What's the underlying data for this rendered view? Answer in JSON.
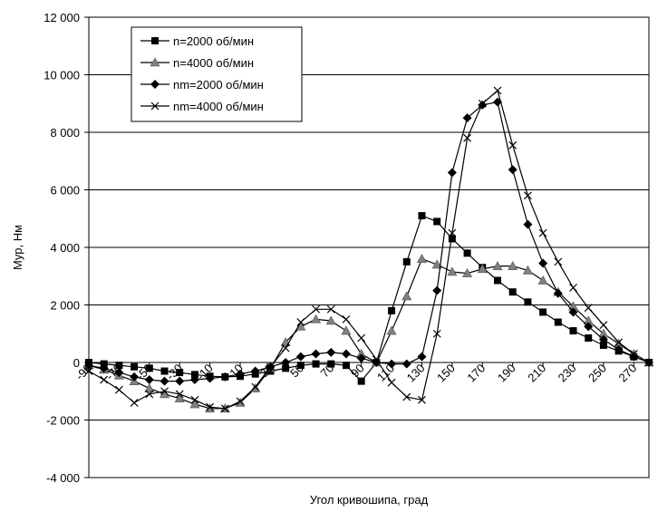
{
  "chart_data": {
    "type": "line",
    "title": "",
    "xlabel": "Угол кривошипа, град",
    "ylabel": "Мур, Нм",
    "xlim": [
      -90,
      280
    ],
    "ylim": [
      -4000,
      12000
    ],
    "x_ticks": [
      "-90",
      "-70",
      "-50",
      "-30",
      "-10",
      "10",
      "30",
      "50",
      "70",
      "90",
      "110",
      "130",
      "150",
      "170",
      "190",
      "210",
      "230",
      "250",
      "270"
    ],
    "y_ticks": [
      "-4 000",
      "-2 000",
      "0",
      "2 000",
      "4 000",
      "6 000",
      "8 000",
      "10 000",
      "12 000"
    ],
    "grid": "horizontal",
    "legend_position": "top-left",
    "series": [
      {
        "name": "n=2000 об/мин",
        "marker": "square",
        "points": [
          [
            -90,
            0
          ],
          [
            -80,
            -50
          ],
          [
            -70,
            -100
          ],
          [
            -60,
            -150
          ],
          [
            -50,
            -200
          ],
          [
            -40,
            -300
          ],
          [
            -30,
            -350
          ],
          [
            -20,
            -420
          ],
          [
            -10,
            -480
          ],
          [
            0,
            -500
          ],
          [
            10,
            -480
          ],
          [
            20,
            -400
          ],
          [
            30,
            -300
          ],
          [
            40,
            -200
          ],
          [
            50,
            -100
          ],
          [
            60,
            -50
          ],
          [
            70,
            -50
          ],
          [
            80,
            -100
          ],
          [
            90,
            -650
          ],
          [
            100,
            0
          ],
          [
            110,
            1800
          ],
          [
            120,
            3500
          ],
          [
            130,
            5100
          ],
          [
            140,
            4900
          ],
          [
            150,
            4300
          ],
          [
            160,
            3800
          ],
          [
            170,
            3300
          ],
          [
            180,
            2850
          ],
          [
            190,
            2450
          ],
          [
            200,
            2100
          ],
          [
            210,
            1750
          ],
          [
            220,
            1400
          ],
          [
            230,
            1100
          ],
          [
            240,
            850
          ],
          [
            250,
            600
          ],
          [
            260,
            400
          ],
          [
            270,
            200
          ],
          [
            280,
            0
          ]
        ]
      },
      {
        "name": "n=4000 об/мин",
        "marker": "triangle",
        "points": [
          [
            -90,
            -100
          ],
          [
            -80,
            -250
          ],
          [
            -70,
            -450
          ],
          [
            -60,
            -650
          ],
          [
            -50,
            -900
          ],
          [
            -40,
            -1100
          ],
          [
            -30,
            -1250
          ],
          [
            -20,
            -1450
          ],
          [
            -10,
            -1600
          ],
          [
            0,
            -1600
          ],
          [
            10,
            -1400
          ],
          [
            20,
            -900
          ],
          [
            30,
            -200
          ],
          [
            40,
            700
          ],
          [
            50,
            1250
          ],
          [
            60,
            1500
          ],
          [
            70,
            1450
          ],
          [
            80,
            1100
          ],
          [
            90,
            300
          ],
          [
            100,
            0
          ],
          [
            110,
            1100
          ],
          [
            120,
            2300
          ],
          [
            130,
            3600
          ],
          [
            140,
            3400
          ],
          [
            150,
            3150
          ],
          [
            160,
            3100
          ],
          [
            170,
            3250
          ],
          [
            180,
            3350
          ],
          [
            190,
            3350
          ],
          [
            200,
            3200
          ],
          [
            210,
            2850
          ],
          [
            220,
            2450
          ],
          [
            230,
            1950
          ],
          [
            240,
            1450
          ],
          [
            250,
            1000
          ],
          [
            260,
            650
          ],
          [
            270,
            300
          ],
          [
            280,
            0
          ]
        ]
      },
      {
        "name": "nm=2000 об/мин",
        "marker": "diamond",
        "points": [
          [
            -90,
            -100
          ],
          [
            -80,
            -200
          ],
          [
            -70,
            -350
          ],
          [
            -60,
            -500
          ],
          [
            -50,
            -600
          ],
          [
            -40,
            -650
          ],
          [
            -30,
            -650
          ],
          [
            -20,
            -600
          ],
          [
            -10,
            -550
          ],
          [
            0,
            -500
          ],
          [
            10,
            -400
          ],
          [
            20,
            -300
          ],
          [
            30,
            -150
          ],
          [
            40,
            0
          ],
          [
            50,
            200
          ],
          [
            60,
            300
          ],
          [
            70,
            350
          ],
          [
            80,
            300
          ],
          [
            90,
            150
          ],
          [
            100,
            0
          ],
          [
            110,
            -50
          ],
          [
            120,
            -50
          ],
          [
            130,
            200
          ],
          [
            140,
            2500
          ],
          [
            150,
            6600
          ],
          [
            160,
            8500
          ],
          [
            170,
            8950
          ],
          [
            180,
            9050
          ],
          [
            190,
            6700
          ],
          [
            200,
            4800
          ],
          [
            210,
            3450
          ],
          [
            220,
            2400
          ],
          [
            230,
            1750
          ],
          [
            240,
            1250
          ],
          [
            250,
            800
          ],
          [
            260,
            450
          ],
          [
            270,
            200
          ],
          [
            280,
            0
          ]
        ]
      },
      {
        "name": "nm=4000 об/мин",
        "marker": "x",
        "points": [
          [
            -90,
            -300
          ],
          [
            -80,
            -600
          ],
          [
            -70,
            -950
          ],
          [
            -60,
            -1400
          ],
          [
            -50,
            -1100
          ],
          [
            -40,
            -1000
          ],
          [
            -30,
            -1100
          ],
          [
            -20,
            -1300
          ],
          [
            -10,
            -1550
          ],
          [
            0,
            -1600
          ],
          [
            10,
            -1350
          ],
          [
            20,
            -850
          ],
          [
            30,
            -150
          ],
          [
            40,
            500
          ],
          [
            50,
            1400
          ],
          [
            60,
            1850
          ],
          [
            70,
            1850
          ],
          [
            80,
            1500
          ],
          [
            90,
            850
          ],
          [
            100,
            100
          ],
          [
            110,
            -700
          ],
          [
            120,
            -1200
          ],
          [
            130,
            -1300
          ],
          [
            140,
            1000
          ],
          [
            150,
            4500
          ],
          [
            160,
            7800
          ],
          [
            170,
            9000
          ],
          [
            180,
            9450
          ],
          [
            190,
            7550
          ],
          [
            200,
            5800
          ],
          [
            210,
            4500
          ],
          [
            220,
            3500
          ],
          [
            230,
            2600
          ],
          [
            240,
            1900
          ],
          [
            250,
            1300
          ],
          [
            260,
            700
          ],
          [
            270,
            300
          ],
          [
            280,
            0
          ]
        ]
      }
    ]
  }
}
